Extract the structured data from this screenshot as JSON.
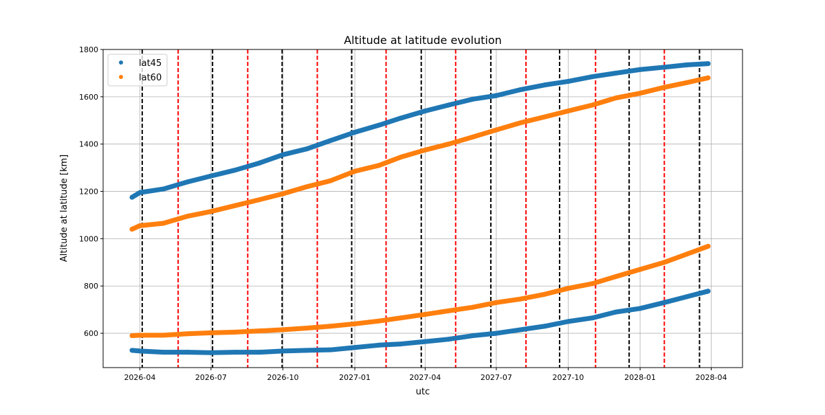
{
  "chart_data": {
    "type": "scatter",
    "title": "Altitude at latitude evolution",
    "xlabel": "utc",
    "ylabel": "Altitude at latitude [km]",
    "xlim": [
      "2026-02-13",
      "2028-05-11"
    ],
    "ylim": [
      455,
      1800
    ],
    "grid": true,
    "legend_position": "top-left",
    "xticks": [
      "2026-04",
      "2026-07",
      "2026-10",
      "2027-01",
      "2027-04",
      "2027-07",
      "2027-10",
      "2028-01",
      "2028-04"
    ],
    "yticks": [
      600,
      800,
      1000,
      1200,
      1400,
      1600,
      1800
    ],
    "x": [
      "2026-03-22",
      "2026-04-01",
      "2026-05-01",
      "2026-06-01",
      "2026-07-01",
      "2026-08-01",
      "2026-09-01",
      "2026-10-01",
      "2026-11-01",
      "2026-12-01",
      "2027-01-01",
      "2027-02-01",
      "2027-03-01",
      "2027-04-01",
      "2027-05-01",
      "2027-06-01",
      "2027-07-01",
      "2027-08-01",
      "2027-09-01",
      "2027-10-01",
      "2027-11-01",
      "2027-12-01",
      "2028-01-01",
      "2028-02-01",
      "2028-03-01",
      "2028-03-28"
    ],
    "series": [
      {
        "name": "lat45",
        "color": "#1f77b4",
        "values": [
          1175,
          1195,
          1210,
          1240,
          1265,
          1290,
          1320,
          1355,
          1380,
          1415,
          1450,
          1480,
          1510,
          1540,
          1565,
          1590,
          1605,
          1630,
          1650,
          1665,
          1685,
          1700,
          1715,
          1725,
          1735,
          1740
        ]
      },
      {
        "name": "lat60",
        "color": "#ff7f0e",
        "values": [
          1040,
          1055,
          1065,
          1095,
          1115,
          1140,
          1165,
          1190,
          1220,
          1245,
          1285,
          1310,
          1345,
          1375,
          1400,
          1430,
          1460,
          1490,
          1515,
          1540,
          1565,
          1595,
          1615,
          1640,
          1660,
          1680
        ]
      },
      {
        "name": "lat60",
        "color": "#ff7f0e",
        "values": [
          590,
          592,
          592,
          598,
          602,
          605,
          610,
          615,
          622,
          630,
          640,
          652,
          665,
          680,
          695,
          710,
          730,
          745,
          765,
          790,
          810,
          840,
          870,
          900,
          935,
          968
        ]
      },
      {
        "name": "lat45",
        "color": "#1f77b4",
        "values": [
          528,
          525,
          520,
          520,
          518,
          520,
          520,
          525,
          528,
          530,
          540,
          550,
          555,
          565,
          575,
          590,
          600,
          615,
          630,
          650,
          665,
          690,
          705,
          730,
          755,
          778
        ]
      }
    ],
    "legend": [
      {
        "label": "lat45",
        "color": "#1f77b4"
      },
      {
        "label": "lat60",
        "color": "#ff7f0e"
      }
    ],
    "vlines_black": [
      "2026-04-04",
      "2026-07-03",
      "2026-09-30",
      "2026-12-28",
      "2027-03-27",
      "2027-06-24",
      "2027-09-20",
      "2027-12-18",
      "2028-03-17"
    ],
    "vlines_red": [
      "2026-05-20",
      "2026-08-17",
      "2026-11-14",
      "2027-02-10",
      "2027-05-10",
      "2027-08-08",
      "2027-11-05",
      "2028-02-01"
    ]
  }
}
